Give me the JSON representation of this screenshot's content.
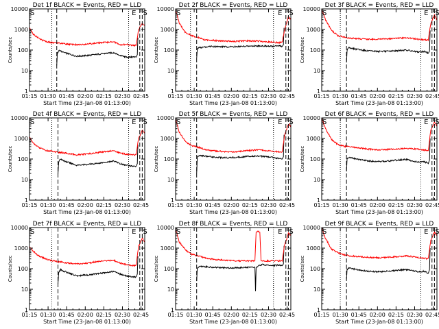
{
  "figure": {
    "background": "#ffffff",
    "axis_color": "#000000",
    "events_color": "#000000",
    "lld_color": "#ff0000",
    "ylabel": "Counts/sec",
    "xlabel": "Start Time (23-Jan-08 01:13:00)",
    "x_tick_labels": [
      "01:15",
      "01:30",
      "01:45",
      "02:00",
      "02:15",
      "02:30",
      "02:45"
    ],
    "y_tick_labels": [
      "1",
      "10",
      "100",
      "1000",
      "10000"
    ]
  },
  "chart_data": [
    {
      "type": "line",
      "title": "Det 1f BLACK = Events, RED = LLD",
      "xlabel": "Start Time (23-Jan-08 01:13:00)",
      "ylabel": "Counts/sec",
      "x_unit": "minutes after 01:13:00",
      "xlim": [
        2,
        95
      ],
      "ylim": [
        1,
        10000
      ],
      "y_scale": "log",
      "markers": [
        {
          "label": "S",
          "x": 2
        },
        {
          "label": "E",
          "x": 84
        },
        {
          "label": "S",
          "x": 93
        }
      ],
      "dotted_lines": [
        20,
        82
      ],
      "dashed_lines": [
        24,
        91,
        93
      ],
      "series": [
        {
          "name": "LLD",
          "color": "#ff0000",
          "x": [
            2,
            5,
            10,
            15,
            20,
            25,
            30,
            40,
            50,
            60,
            70,
            75,
            80,
            85,
            88,
            90,
            93,
            95
          ],
          "values": [
            1200,
            600,
            350,
            260,
            230,
            220,
            200,
            180,
            200,
            230,
            250,
            180,
            190,
            170,
            170,
            1000,
            2000,
            1500
          ]
        },
        {
          "name": "Events",
          "color": "#000000",
          "x": [
            24,
            24.5,
            26,
            30,
            40,
            50,
            60,
            70,
            75,
            80,
            85,
            88,
            89,
            89.5
          ],
          "values": [
            18,
            70,
            95,
            75,
            50,
            55,
            65,
            75,
            55,
            45,
            45,
            45,
            60,
            400
          ]
        }
      ]
    },
    {
      "type": "line",
      "title": "Det 2f BLACK = Events, RED = LLD",
      "xlabel": "Start Time (23-Jan-08 01:13:00)",
      "ylabel": "Counts/sec",
      "x_unit": "minutes after 01:13:00",
      "xlim": [
        2,
        95
      ],
      "ylim": [
        1,
        10000
      ],
      "y_scale": "log",
      "markers": [
        {
          "label": "S",
          "x": 2
        },
        {
          "label": "E",
          "x": 84
        },
        {
          "label": "S",
          "x": 93
        }
      ],
      "dotted_lines": [
        14,
        81
      ],
      "dashed_lines": [
        19,
        91,
        93
      ],
      "series": [
        {
          "name": "LLD",
          "color": "#ff0000",
          "x": [
            2,
            5,
            10,
            15,
            20,
            25,
            30,
            40,
            50,
            60,
            70,
            80,
            85,
            88,
            90,
            93,
            95
          ],
          "values": [
            9000,
            2000,
            700,
            500,
            420,
            320,
            300,
            280,
            260,
            280,
            270,
            240,
            230,
            240,
            1000,
            4000,
            3000
          ]
        },
        {
          "name": "Events",
          "color": "#000000",
          "x": [
            19,
            19.5,
            21,
            30,
            40,
            50,
            60,
            70,
            80,
            85,
            88,
            89,
            89.5
          ],
          "values": [
            40,
            110,
            130,
            150,
            145,
            145,
            155,
            160,
            150,
            160,
            150,
            180,
            1200
          ]
        }
      ]
    },
    {
      "type": "line",
      "title": "Det 3f BLACK = Events, RED = LLD",
      "xlabel": "Start Time (23-Jan-08 01:13:00)",
      "ylabel": "Counts/sec",
      "x_unit": "minutes after 01:13:00",
      "xlim": [
        2,
        95
      ],
      "ylim": [
        1,
        10000
      ],
      "y_scale": "log",
      "markers": [
        {
          "label": "S",
          "x": 2
        },
        {
          "label": "E",
          "x": 84
        },
        {
          "label": "S",
          "x": 93
        }
      ],
      "dotted_lines": [
        17,
        82
      ],
      "dashed_lines": [
        22,
        91,
        93
      ],
      "series": [
        {
          "name": "LLD",
          "color": "#ff0000",
          "x": [
            2,
            5,
            10,
            15,
            20,
            25,
            30,
            40,
            50,
            60,
            70,
            80,
            88,
            90,
            93,
            95
          ],
          "values": [
            10000,
            3000,
            900,
            500,
            420,
            380,
            360,
            330,
            340,
            360,
            400,
            330,
            300,
            2000,
            5000,
            3000
          ]
        },
        {
          "name": "Events",
          "color": "#000000",
          "x": [
            22,
            22.5,
            24,
            30,
            40,
            50,
            60,
            70,
            80,
            85,
            88,
            89,
            89.5
          ],
          "values": [
            25,
            100,
            130,
            110,
            90,
            85,
            90,
            100,
            80,
            85,
            70,
            90,
            900
          ]
        }
      ]
    },
    {
      "type": "line",
      "title": "Det 4f BLACK = Events, RED = LLD",
      "xlabel": "Start Time (23-Jan-08 01:13:00)",
      "ylabel": "Counts/sec",
      "x_unit": "minutes after 01:13:00",
      "xlim": [
        2,
        95
      ],
      "ylim": [
        1,
        10000
      ],
      "y_scale": "log",
      "markers": [
        {
          "label": "S",
          "x": 2
        },
        {
          "label": "E",
          "x": 84
        },
        {
          "label": "S",
          "x": 93
        }
      ],
      "dotted_lines": [
        20,
        82
      ],
      "dashed_lines": [
        25,
        91,
        93
      ],
      "series": [
        {
          "name": "LLD",
          "color": "#ff0000",
          "x": [
            2,
            5,
            10,
            15,
            20,
            25,
            30,
            40,
            50,
            60,
            70,
            75,
            80,
            85,
            88,
            90,
            93,
            95
          ],
          "values": [
            1200,
            600,
            350,
            260,
            240,
            210,
            200,
            160,
            180,
            220,
            250,
            200,
            170,
            160,
            160,
            1000,
            2500,
            1800
          ]
        },
        {
          "name": "Events",
          "color": "#000000",
          "x": [
            25,
            25.5,
            27,
            30,
            40,
            50,
            60,
            70,
            75,
            80,
            85,
            88,
            89,
            89.5
          ],
          "values": [
            18,
            70,
            100,
            80,
            50,
            55,
            65,
            80,
            60,
            50,
            45,
            45,
            60,
            500
          ]
        }
      ]
    },
    {
      "type": "line",
      "title": "Det 5f BLACK = Events, RED = LLD",
      "xlabel": "Start Time (23-Jan-08 01:13:00)",
      "ylabel": "Counts/sec",
      "x_unit": "minutes after 01:13:00",
      "xlim": [
        2,
        95
      ],
      "ylim": [
        1,
        10000
      ],
      "y_scale": "log",
      "markers": [
        {
          "label": "S",
          "x": 2
        },
        {
          "label": "E",
          "x": 84
        },
        {
          "label": "S",
          "x": 93
        }
      ],
      "dotted_lines": [
        14,
        81
      ],
      "dashed_lines": [
        19,
        91,
        93
      ],
      "series": [
        {
          "name": "LLD",
          "color": "#ff0000",
          "x": [
            2,
            5,
            10,
            15,
            20,
            25,
            30,
            40,
            50,
            60,
            70,
            80,
            85,
            88,
            90,
            93,
            95
          ],
          "values": [
            9000,
            2000,
            700,
            450,
            380,
            300,
            260,
            230,
            220,
            260,
            280,
            240,
            220,
            230,
            1500,
            5000,
            4000
          ]
        },
        {
          "name": "Events",
          "color": "#000000",
          "x": [
            19,
            19.5,
            21,
            30,
            40,
            50,
            60,
            70,
            80,
            85,
            88,
            89,
            89.5
          ],
          "values": [
            20,
            130,
            150,
            130,
            115,
            120,
            135,
            140,
            120,
            110,
            100,
            130,
            1500
          ]
        }
      ]
    },
    {
      "type": "line",
      "title": "Det 6f BLACK = Events, RED = LLD",
      "xlabel": "Start Time (23-Jan-08 01:13:00)",
      "ylabel": "Counts/sec",
      "x_unit": "minutes after 01:13:00",
      "xlim": [
        2,
        95
      ],
      "ylim": [
        1,
        10000
      ],
      "y_scale": "log",
      "markers": [
        {
          "label": "S",
          "x": 2
        },
        {
          "label": "E",
          "x": 84
        },
        {
          "label": "S",
          "x": 93
        }
      ],
      "dotted_lines": [
        17,
        82
      ],
      "dashed_lines": [
        22,
        91,
        93
      ],
      "series": [
        {
          "name": "LLD",
          "color": "#ff0000",
          "x": [
            2,
            5,
            10,
            15,
            20,
            25,
            30,
            40,
            50,
            60,
            70,
            80,
            88,
            90,
            93,
            95
          ],
          "values": [
            10000,
            3000,
            900,
            500,
            420,
            390,
            360,
            300,
            280,
            300,
            330,
            300,
            260,
            2500,
            6000,
            4000
          ]
        },
        {
          "name": "Events",
          "color": "#000000",
          "x": [
            22,
            22.5,
            24,
            30,
            40,
            50,
            60,
            70,
            80,
            85,
            88,
            89,
            89.5
          ],
          "values": [
            25,
            110,
            120,
            100,
            80,
            75,
            85,
            95,
            70,
            75,
            60,
            90,
            1000
          ]
        }
      ]
    },
    {
      "type": "line",
      "title": "Det 7f BLACK = Events, RED = LLD",
      "xlabel": "Start Time (23-Jan-08 01:13:00)",
      "ylabel": "Counts/sec",
      "x_unit": "minutes after 01:13:00",
      "xlim": [
        2,
        95
      ],
      "ylim": [
        1,
        10000
      ],
      "y_scale": "log",
      "markers": [
        {
          "label": "S",
          "x": 2
        },
        {
          "label": "E",
          "x": 84
        },
        {
          "label": "S",
          "x": 93
        }
      ],
      "dotted_lines": [
        20,
        82
      ],
      "dashed_lines": [
        25,
        91,
        93
      ],
      "series": [
        {
          "name": "LLD",
          "color": "#ff0000",
          "x": [
            2,
            5,
            10,
            15,
            20,
            25,
            30,
            40,
            50,
            60,
            70,
            75,
            80,
            85,
            88,
            90,
            93,
            95
          ],
          "values": [
            1200,
            700,
            400,
            300,
            250,
            220,
            200,
            170,
            190,
            240,
            260,
            190,
            160,
            140,
            140,
            1200,
            3000,
            2000
          ]
        },
        {
          "name": "Events",
          "color": "#000000",
          "x": [
            25,
            25.5,
            27,
            30,
            40,
            50,
            60,
            70,
            75,
            80,
            85,
            88,
            89,
            89.5
          ],
          "values": [
            18,
            60,
            90,
            75,
            45,
            50,
            60,
            75,
            55,
            45,
            40,
            40,
            55,
            400
          ]
        }
      ]
    },
    {
      "type": "line",
      "title": "Det 8f BLACK = Events, RED = LLD",
      "xlabel": "Start Time (23-Jan-08 01:13:00)",
      "ylabel": "Counts/sec",
      "x_unit": "minutes after 01:13:00",
      "xlim": [
        2,
        95
      ],
      "ylim": [
        1,
        10000
      ],
      "y_scale": "log",
      "markers": [
        {
          "label": "S",
          "x": 2
        },
        {
          "label": "E",
          "x": 84
        },
        {
          "label": "S",
          "x": 93
        }
      ],
      "dotted_lines": [
        14,
        81
      ],
      "dashed_lines": [
        19,
        91,
        93
      ],
      "series": [
        {
          "name": "LLD",
          "color": "#ff0000",
          "x": [
            2,
            5,
            10,
            15,
            20,
            25,
            30,
            40,
            50,
            60,
            66,
            67,
            68,
            70,
            71,
            72,
            80,
            85,
            88,
            90,
            93,
            95
          ],
          "values": [
            9000,
            2000,
            800,
            500,
            420,
            340,
            300,
            260,
            240,
            240,
            240,
            6000,
            6500,
            6000,
            240,
            240,
            240,
            240,
            250,
            1500,
            5000,
            4000
          ]
        },
        {
          "name": "Events",
          "color": "#000000",
          "x": [
            19,
            19.5,
            21,
            30,
            40,
            50,
            60,
            66,
            66.5,
            67,
            72,
            80,
            85,
            88,
            89,
            89.5
          ],
          "values": [
            25,
            110,
            130,
            120,
            110,
            110,
            115,
            115,
            8,
            120,
            160,
            140,
            150,
            140,
            170,
            1300
          ]
        }
      ]
    },
    {
      "type": "line",
      "title": "Det 9f BLACK = Events, RED = LLD",
      "xlabel": "Start Time (23-Jan-08 01:13:00)",
      "ylabel": "Counts/sec",
      "x_unit": "minutes after 01:13:00",
      "xlim": [
        2,
        95
      ],
      "ylim": [
        1,
        10000
      ],
      "y_scale": "log",
      "markers": [
        {
          "label": "S",
          "x": 2
        },
        {
          "label": "E",
          "x": 84
        },
        {
          "label": "S",
          "x": 93
        }
      ],
      "dotted_lines": [
        17,
        82
      ],
      "dashed_lines": [
        22,
        91,
        93
      ],
      "series": [
        {
          "name": "LLD",
          "color": "#ff0000",
          "x": [
            2,
            5,
            10,
            15,
            20,
            25,
            30,
            40,
            50,
            60,
            70,
            80,
            88,
            90,
            93,
            95
          ],
          "values": [
            10000,
            3000,
            900,
            600,
            480,
            420,
            400,
            350,
            340,
            380,
            420,
            350,
            300,
            2500,
            6000,
            4000
          ]
        },
        {
          "name": "Events",
          "color": "#000000",
          "x": [
            22,
            22.5,
            24,
            30,
            40,
            50,
            60,
            70,
            80,
            85,
            88,
            89,
            89.5
          ],
          "values": [
            30,
            90,
            110,
            90,
            75,
            70,
            80,
            90,
            70,
            75,
            60,
            90,
            1000
          ]
        }
      ]
    }
  ]
}
